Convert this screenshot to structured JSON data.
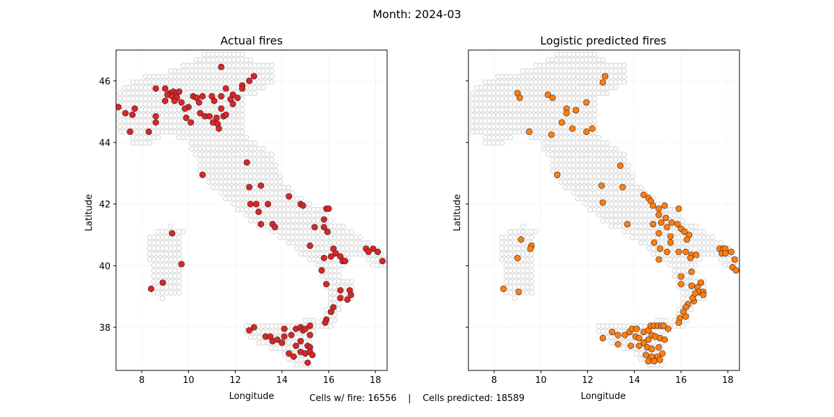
{
  "suptitle": "Month: 2024-03",
  "footer": "Cells w/ fire: 16556    |    Cells predicted: 18589",
  "colors": {
    "land": "#d3d3d3",
    "actual": "#d62728",
    "predicted": "#ff7f0e",
    "edge": "#3a1a1a"
  },
  "chart_data": [
    {
      "type": "scatter",
      "title": "Actual fires",
      "xlabel": "Longitude",
      "ylabel": "Latitude",
      "xlim": [
        6.9,
        18.5
      ],
      "ylim": [
        36.6,
        47.0
      ],
      "xticks": [
        8,
        10,
        12,
        14,
        16,
        18
      ],
      "yticks": [
        38,
        40,
        42,
        44,
        46
      ],
      "grid": true,
      "series": [
        {
          "points": [
            [
              11.4,
              46.45
            ],
            [
              12.8,
              46.15
            ],
            [
              12.6,
              46.0
            ],
            [
              12.3,
              45.85
            ],
            [
              12.3,
              45.75
            ],
            [
              11.6,
              45.75
            ],
            [
              8.6,
              45.75
            ],
            [
              9.0,
              45.75
            ],
            [
              9.2,
              45.6
            ],
            [
              9.35,
              45.65
            ],
            [
              9.5,
              45.6
            ],
            [
              9.6,
              45.65
            ],
            [
              9.1,
              45.55
            ],
            [
              9.3,
              45.5
            ],
            [
              9.5,
              45.45
            ],
            [
              9.4,
              45.35
            ],
            [
              9.0,
              45.35
            ],
            [
              9.7,
              45.3
            ],
            [
              10.2,
              45.5
            ],
            [
              10.35,
              45.45
            ],
            [
              10.45,
              45.3
            ],
            [
              10.6,
              45.5
            ],
            [
              11.0,
              45.5
            ],
            [
              11.1,
              45.35
            ],
            [
              11.4,
              45.5
            ],
            [
              11.9,
              45.55
            ],
            [
              11.8,
              45.4
            ],
            [
              12.1,
              45.45
            ],
            [
              11.9,
              45.25
            ],
            [
              7.0,
              45.15
            ],
            [
              7.7,
              45.1
            ],
            [
              7.3,
              44.95
            ],
            [
              7.6,
              44.9
            ],
            [
              10.0,
              45.15
            ],
            [
              9.85,
              45.1
            ],
            [
              10.5,
              44.95
            ],
            [
              10.7,
              44.85
            ],
            [
              10.9,
              44.85
            ],
            [
              11.2,
              44.8
            ],
            [
              11.5,
              44.85
            ],
            [
              11.6,
              44.9
            ],
            [
              11.4,
              45.1
            ],
            [
              11.05,
              44.65
            ],
            [
              11.25,
              44.6
            ],
            [
              11.3,
              44.45
            ],
            [
              9.9,
              44.8
            ],
            [
              10.1,
              44.65
            ],
            [
              8.6,
              44.85
            ],
            [
              8.6,
              44.65
            ],
            [
              7.5,
              44.35
            ],
            [
              8.3,
              44.35
            ],
            [
              10.6,
              42.95
            ],
            [
              12.5,
              43.35
            ],
            [
              12.6,
              42.55
            ],
            [
              12.65,
              42.0
            ],
            [
              12.9,
              42.0
            ],
            [
              13.1,
              42.6
            ],
            [
              13.0,
              41.75
            ],
            [
              13.4,
              42.0
            ],
            [
              13.1,
              41.35
            ],
            [
              13.6,
              41.35
            ],
            [
              13.7,
              41.25
            ],
            [
              14.3,
              42.25
            ],
            [
              14.8,
              42.0
            ],
            [
              14.9,
              41.95
            ],
            [
              15.9,
              41.85
            ],
            [
              16.0,
              41.85
            ],
            [
              15.8,
              41.5
            ],
            [
              15.4,
              41.25
            ],
            [
              15.8,
              41.25
            ],
            [
              15.95,
              41.1
            ],
            [
              15.2,
              40.65
            ],
            [
              16.2,
              40.55
            ],
            [
              16.3,
              40.4
            ],
            [
              16.1,
              40.3
            ],
            [
              15.8,
              40.25
            ],
            [
              16.5,
              40.3
            ],
            [
              16.6,
              40.15
            ],
            [
              16.7,
              40.15
            ],
            [
              17.6,
              40.55
            ],
            [
              17.7,
              40.45
            ],
            [
              17.9,
              40.55
            ],
            [
              18.1,
              40.45
            ],
            [
              18.3,
              40.15
            ],
            [
              15.7,
              39.85
            ],
            [
              15.9,
              39.4
            ],
            [
              16.5,
              39.2
            ],
            [
              16.5,
              38.95
            ],
            [
              16.8,
              38.9
            ],
            [
              16.9,
              39.2
            ],
            [
              16.95,
              39.05
            ],
            [
              16.2,
              38.65
            ],
            [
              16.1,
              38.5
            ],
            [
              15.9,
              38.25
            ],
            [
              15.85,
              38.15
            ],
            [
              12.6,
              37.9
            ],
            [
              12.8,
              38.0
            ],
            [
              13.3,
              37.7
            ],
            [
              13.6,
              37.55
            ],
            [
              13.5,
              37.7
            ],
            [
              13.8,
              37.6
            ],
            [
              14.0,
              37.5
            ],
            [
              14.1,
              37.7
            ],
            [
              14.4,
              37.75
            ],
            [
              14.1,
              37.95
            ],
            [
              14.6,
              37.95
            ],
            [
              14.8,
              38.0
            ],
            [
              14.9,
              37.9
            ],
            [
              15.0,
              37.95
            ],
            [
              15.2,
              38.05
            ],
            [
              15.2,
              37.75
            ],
            [
              14.6,
              37.4
            ],
            [
              14.8,
              37.55
            ],
            [
              15.1,
              37.4
            ],
            [
              15.2,
              37.35
            ],
            [
              14.8,
              37.2
            ],
            [
              14.3,
              37.15
            ],
            [
              14.5,
              37.05
            ],
            [
              15.0,
              37.15
            ],
            [
              15.2,
              37.2
            ],
            [
              15.3,
              37.1
            ],
            [
              15.1,
              36.85
            ],
            [
              8.4,
              39.25
            ],
            [
              8.9,
              39.45
            ],
            [
              9.3,
              41.05
            ],
            [
              9.7,
              40.05
            ]
          ]
        }
      ]
    },
    {
      "type": "scatter",
      "title": "Logistic predicted fires",
      "xlabel": "Longitude",
      "ylabel": "Latitude",
      "xlim": [
        6.9,
        18.5
      ],
      "ylim": [
        36.6,
        47.0
      ],
      "xticks": [
        8,
        10,
        12,
        14,
        16,
        18
      ],
      "yticks": [
        38,
        40,
        42,
        44,
        46
      ],
      "grid": true,
      "series": [
        {
          "points": [
            [
              12.75,
              46.15
            ],
            [
              12.65,
              45.95
            ],
            [
              10.3,
              45.55
            ],
            [
              10.5,
              45.45
            ],
            [
              9.0,
              45.6
            ],
            [
              9.1,
              45.45
            ],
            [
              11.1,
              45.1
            ],
            [
              11.1,
              44.95
            ],
            [
              11.5,
              45.05
            ],
            [
              11.95,
              45.3
            ],
            [
              10.9,
              44.65
            ],
            [
              11.35,
              44.45
            ],
            [
              11.95,
              44.35
            ],
            [
              12.2,
              44.45
            ],
            [
              10.45,
              44.25
            ],
            [
              9.5,
              44.35
            ],
            [
              10.7,
              42.95
            ],
            [
              13.4,
              43.25
            ],
            [
              12.6,
              42.6
            ],
            [
              12.65,
              42.05
            ],
            [
              13.5,
              42.55
            ],
            [
              14.4,
              42.3
            ],
            [
              14.6,
              42.2
            ],
            [
              14.7,
              42.1
            ],
            [
              14.8,
              41.95
            ],
            [
              15.05,
              41.85
            ],
            [
              15.3,
              41.95
            ],
            [
              15.9,
              41.85
            ],
            [
              15.05,
              41.65
            ],
            [
              15.15,
              41.4
            ],
            [
              15.35,
              41.55
            ],
            [
              15.6,
              41.4
            ],
            [
              15.85,
              41.35
            ],
            [
              15.4,
              41.25
            ],
            [
              14.8,
              41.35
            ],
            [
              16.0,
              41.2
            ],
            [
              16.15,
              41.1
            ],
            [
              16.35,
              41.0
            ],
            [
              16.25,
              40.85
            ],
            [
              15.05,
              41.05
            ],
            [
              15.55,
              40.95
            ],
            [
              14.85,
              40.75
            ],
            [
              15.55,
              40.75
            ],
            [
              13.7,
              41.35
            ],
            [
              15.1,
              40.55
            ],
            [
              15.4,
              40.45
            ],
            [
              15.9,
              40.45
            ],
            [
              16.2,
              40.45
            ],
            [
              16.45,
              40.35
            ],
            [
              16.65,
              40.35
            ],
            [
              16.4,
              40.25
            ],
            [
              15.05,
              40.2
            ],
            [
              17.65,
              40.55
            ],
            [
              17.8,
              40.55
            ],
            [
              17.9,
              40.55
            ],
            [
              17.75,
              40.4
            ],
            [
              17.9,
              40.4
            ],
            [
              18.15,
              40.45
            ],
            [
              18.3,
              40.2
            ],
            [
              18.2,
              39.95
            ],
            [
              18.35,
              39.85
            ],
            [
              16.0,
              39.65
            ],
            [
              16.45,
              39.8
            ],
            [
              16.0,
              39.4
            ],
            [
              16.45,
              39.35
            ],
            [
              16.85,
              39.45
            ],
            [
              16.7,
              39.3
            ],
            [
              16.75,
              39.15
            ],
            [
              16.95,
              39.15
            ],
            [
              16.95,
              39.05
            ],
            [
              16.55,
              38.85
            ],
            [
              16.3,
              38.75
            ],
            [
              16.2,
              38.65
            ],
            [
              16.1,
              38.5
            ],
            [
              15.95,
              38.3
            ],
            [
              15.9,
              38.15
            ],
            [
              16.2,
              38.35
            ],
            [
              16.5,
              38.95
            ],
            [
              16.6,
              39.1
            ],
            [
              12.65,
              37.65
            ],
            [
              13.05,
              37.85
            ],
            [
              13.3,
              37.75
            ],
            [
              13.6,
              37.75
            ],
            [
              13.8,
              37.85
            ],
            [
              13.9,
              37.95
            ],
            [
              14.1,
              37.95
            ],
            [
              14.05,
              37.7
            ],
            [
              14.2,
              37.65
            ],
            [
              14.4,
              37.85
            ],
            [
              14.6,
              37.9
            ],
            [
              14.7,
              38.05
            ],
            [
              14.85,
              38.05
            ],
            [
              15.0,
              38.05
            ],
            [
              15.15,
              38.05
            ],
            [
              15.25,
              38.05
            ],
            [
              14.4,
              37.5
            ],
            [
              14.6,
              37.6
            ],
            [
              14.75,
              37.75
            ],
            [
              14.9,
              37.7
            ],
            [
              15.1,
              37.65
            ],
            [
              15.3,
              37.6
            ],
            [
              15.45,
              37.95
            ],
            [
              14.55,
              37.35
            ],
            [
              14.75,
              37.3
            ],
            [
              15.05,
              37.35
            ],
            [
              15.2,
              37.15
            ],
            [
              14.5,
              37.1
            ],
            [
              14.75,
              37.05
            ],
            [
              15.0,
              37.05
            ],
            [
              15.1,
              36.95
            ],
            [
              14.6,
              36.9
            ],
            [
              14.85,
              36.9
            ],
            [
              13.3,
              37.45
            ],
            [
              13.85,
              37.4
            ],
            [
              14.2,
              37.4
            ],
            [
              8.4,
              39.25
            ],
            [
              9.05,
              39.15
            ],
            [
              9.0,
              40.25
            ],
            [
              9.15,
              40.85
            ],
            [
              9.6,
              40.65
            ],
            [
              9.55,
              40.55
            ]
          ]
        }
      ]
    }
  ]
}
